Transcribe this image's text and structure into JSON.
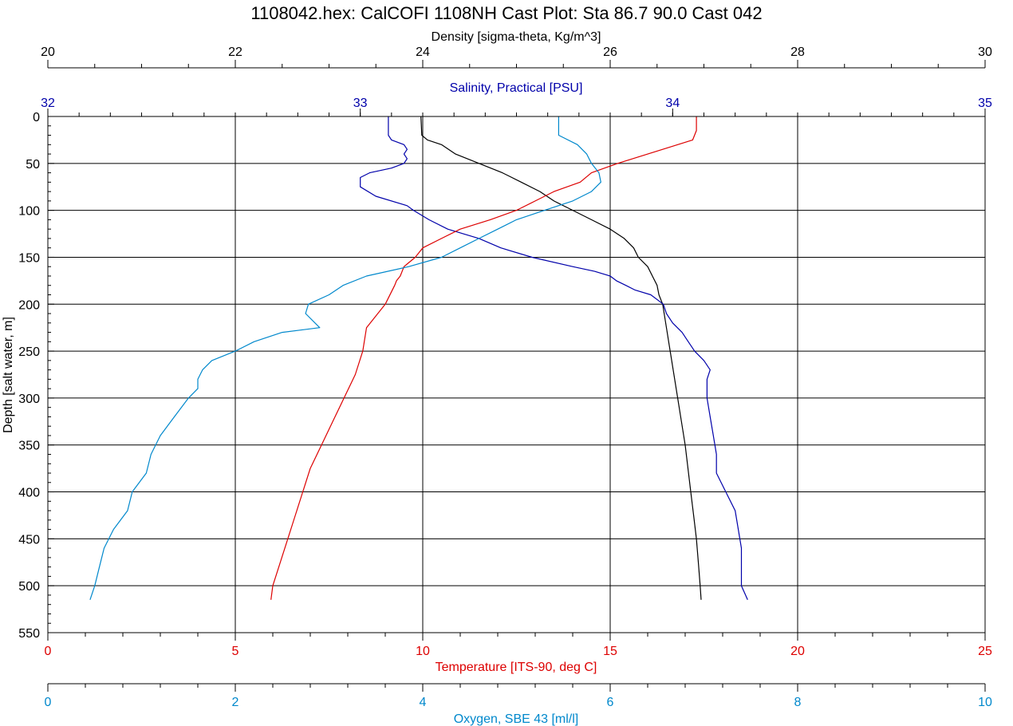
{
  "chart_data": {
    "type": "line",
    "title": "1108042.hex: CalCOFI 1108NH Cast Plot: Sta 86.7 90.0  Cast 042",
    "grid": true,
    "y_axis": {
      "label": "Depth [salt water, m]",
      "range": [
        0,
        550
      ],
      "reversed": true,
      "ticks": [
        "0",
        "50",
        "100",
        "150",
        "200",
        "250",
        "300",
        "350",
        "400",
        "450",
        "500",
        "550"
      ]
    },
    "x_axes": [
      {
        "id": "density",
        "label": "Density [sigma-theta, Kg/m^3]",
        "position": "top",
        "range": [
          20,
          30
        ],
        "color": "#000000",
        "ticks": [
          "20",
          "22",
          "24",
          "26",
          "28",
          "30"
        ]
      },
      {
        "id": "salinity",
        "label": "Salinity, Practical [PSU]",
        "position": "top",
        "range": [
          32,
          35
        ],
        "color": "#0000aa",
        "ticks": [
          "32",
          "33",
          "34",
          "35"
        ]
      },
      {
        "id": "temperature",
        "label": "Temperature [ITS-90, deg C]",
        "position": "bottom",
        "range": [
          0,
          25
        ],
        "color": "#dd0000",
        "ticks": [
          "0",
          "5",
          "10",
          "15",
          "20",
          "25"
        ]
      },
      {
        "id": "oxygen",
        "label": "Oxygen, SBE 43 [ml/l]",
        "position": "bottom",
        "range": [
          0,
          10
        ],
        "color": "#0088cc",
        "ticks": [
          "0",
          "2",
          "4",
          "6",
          "8",
          "10"
        ]
      }
    ],
    "series": [
      {
        "axis": "density",
        "color": "#000000",
        "points": [
          [
            0,
            23.98
          ],
          [
            20,
            23.99
          ],
          [
            25,
            24.05
          ],
          [
            30,
            24.2
          ],
          [
            40,
            24.35
          ],
          [
            50,
            24.6
          ],
          [
            60,
            24.85
          ],
          [
            70,
            25.05
          ],
          [
            80,
            25.25
          ],
          [
            90,
            25.4
          ],
          [
            100,
            25.6
          ],
          [
            110,
            25.8
          ],
          [
            120,
            26.0
          ],
          [
            130,
            26.15
          ],
          [
            140,
            26.25
          ],
          [
            150,
            26.3
          ],
          [
            160,
            26.4
          ],
          [
            170,
            26.45
          ],
          [
            180,
            26.5
          ],
          [
            190,
            26.52
          ],
          [
            200,
            26.56
          ],
          [
            225,
            26.6
          ],
          [
            250,
            26.64
          ],
          [
            275,
            26.68
          ],
          [
            300,
            26.72
          ],
          [
            325,
            26.76
          ],
          [
            350,
            26.8
          ],
          [
            375,
            26.83
          ],
          [
            400,
            26.86
          ],
          [
            425,
            26.89
          ],
          [
            450,
            26.92
          ],
          [
            475,
            26.94
          ],
          [
            500,
            26.96
          ],
          [
            515,
            26.97
          ]
        ]
      },
      {
        "axis": "salinity",
        "color": "#0000aa",
        "points": [
          [
            0,
            33.09
          ],
          [
            20,
            33.09
          ],
          [
            25,
            33.1
          ],
          [
            30,
            33.14
          ],
          [
            35,
            33.15
          ],
          [
            40,
            33.14
          ],
          [
            45,
            33.15
          ],
          [
            50,
            33.14
          ],
          [
            55,
            33.1
          ],
          [
            60,
            33.03
          ],
          [
            65,
            33.0
          ],
          [
            70,
            33.0
          ],
          [
            75,
            33.0
          ],
          [
            85,
            33.05
          ],
          [
            95,
            33.15
          ],
          [
            100,
            33.17
          ],
          [
            110,
            33.22
          ],
          [
            120,
            33.28
          ],
          [
            130,
            33.38
          ],
          [
            140,
            33.45
          ],
          [
            150,
            33.55
          ],
          [
            160,
            33.68
          ],
          [
            165,
            33.75
          ],
          [
            170,
            33.8
          ],
          [
            175,
            33.82
          ],
          [
            180,
            33.85
          ],
          [
            185,
            33.88
          ],
          [
            190,
            33.93
          ],
          [
            200,
            33.97
          ],
          [
            210,
            33.98
          ],
          [
            220,
            34.0
          ],
          [
            230,
            34.03
          ],
          [
            240,
            34.05
          ],
          [
            250,
            34.07
          ],
          [
            260,
            34.1
          ],
          [
            270,
            34.12
          ],
          [
            280,
            34.11
          ],
          [
            290,
            34.11
          ],
          [
            300,
            34.11
          ],
          [
            320,
            34.12
          ],
          [
            340,
            34.13
          ],
          [
            360,
            34.14
          ],
          [
            380,
            34.14
          ],
          [
            400,
            34.17
          ],
          [
            420,
            34.2
          ],
          [
            440,
            34.21
          ],
          [
            460,
            34.22
          ],
          [
            480,
            34.22
          ],
          [
            500,
            34.22
          ],
          [
            515,
            34.24
          ]
        ]
      },
      {
        "axis": "temperature",
        "color": "#dd0000",
        "points": [
          [
            0,
            17.3
          ],
          [
            15,
            17.3
          ],
          [
            25,
            17.2
          ],
          [
            30,
            16.8
          ],
          [
            40,
            16.0
          ],
          [
            50,
            15.2
          ],
          [
            60,
            14.5
          ],
          [
            70,
            14.2
          ],
          [
            80,
            13.5
          ],
          [
            90,
            13.0
          ],
          [
            100,
            12.5
          ],
          [
            110,
            11.8
          ],
          [
            120,
            11.0
          ],
          [
            130,
            10.5
          ],
          [
            140,
            10.0
          ],
          [
            150,
            9.8
          ],
          [
            160,
            9.5
          ],
          [
            170,
            9.4
          ],
          [
            175,
            9.3
          ],
          [
            180,
            9.25
          ],
          [
            200,
            9.0
          ],
          [
            225,
            8.5
          ],
          [
            250,
            8.4
          ],
          [
            275,
            8.2
          ],
          [
            300,
            7.9
          ],
          [
            325,
            7.6
          ],
          [
            350,
            7.3
          ],
          [
            375,
            7.0
          ],
          [
            400,
            6.8
          ],
          [
            425,
            6.6
          ],
          [
            450,
            6.4
          ],
          [
            475,
            6.2
          ],
          [
            500,
            6.0
          ],
          [
            515,
            5.95
          ]
        ]
      },
      {
        "axis": "oxygen",
        "color": "#0088cc",
        "points": [
          [
            0,
            5.45
          ],
          [
            20,
            5.45
          ],
          [
            30,
            5.65
          ],
          [
            40,
            5.75
          ],
          [
            50,
            5.8
          ],
          [
            60,
            5.88
          ],
          [
            70,
            5.9
          ],
          [
            80,
            5.8
          ],
          [
            90,
            5.6
          ],
          [
            100,
            5.3
          ],
          [
            110,
            5.0
          ],
          [
            120,
            4.8
          ],
          [
            130,
            4.6
          ],
          [
            140,
            4.4
          ],
          [
            150,
            4.2
          ],
          [
            160,
            3.85
          ],
          [
            170,
            3.4
          ],
          [
            180,
            3.15
          ],
          [
            190,
            3.0
          ],
          [
            200,
            2.78
          ],
          [
            210,
            2.75
          ],
          [
            220,
            2.85
          ],
          [
            225,
            2.9
          ],
          [
            230,
            2.5
          ],
          [
            240,
            2.2
          ],
          [
            250,
            2.0
          ],
          [
            260,
            1.75
          ],
          [
            270,
            1.65
          ],
          [
            280,
            1.6
          ],
          [
            290,
            1.6
          ],
          [
            300,
            1.5
          ],
          [
            320,
            1.35
          ],
          [
            340,
            1.2
          ],
          [
            360,
            1.1
          ],
          [
            380,
            1.05
          ],
          [
            400,
            0.9
          ],
          [
            420,
            0.85
          ],
          [
            440,
            0.7
          ],
          [
            460,
            0.6
          ],
          [
            480,
            0.55
          ],
          [
            500,
            0.5
          ],
          [
            515,
            0.45
          ]
        ]
      }
    ]
  }
}
